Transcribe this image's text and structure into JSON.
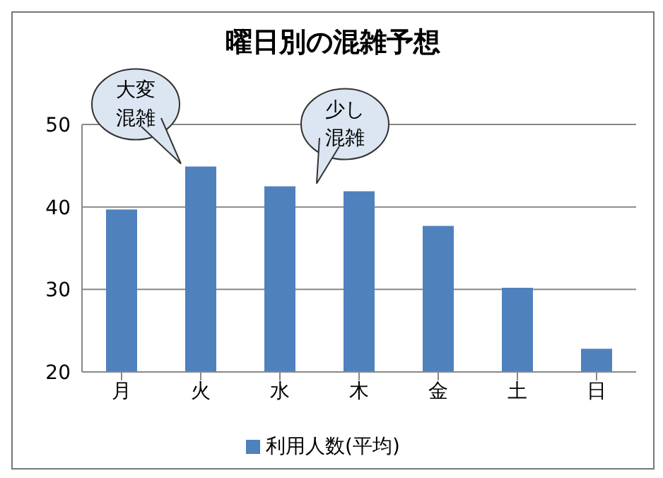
{
  "chart_data": {
    "type": "bar",
    "title": "曜日別の混雑予想",
    "categories": [
      "月",
      "火",
      "水",
      "木",
      "金",
      "土",
      "日"
    ],
    "series": [
      {
        "name": "利用人数(平均)",
        "color": "#4f81bd",
        "values": [
          39.7,
          44.9,
          42.5,
          41.9,
          37.7,
          30.2,
          22.8
        ]
      }
    ],
    "ylim": [
      20,
      50
    ],
    "yticks": [
      20,
      30,
      40,
      50
    ],
    "grid": "y",
    "legend": "bottom",
    "annotations": [
      {
        "text": "大変混雑",
        "x": "火",
        "y": 44.9
      },
      {
        "text": "少し混雑",
        "x": "水",
        "y": 42.5
      }
    ]
  }
}
